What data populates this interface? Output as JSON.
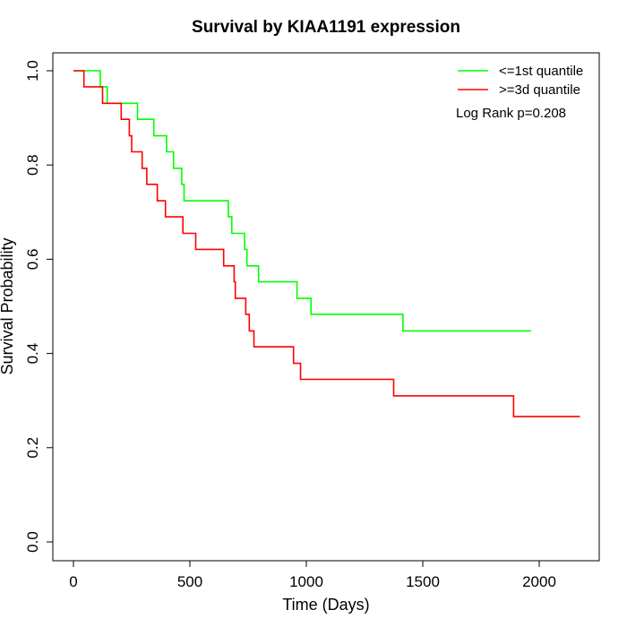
{
  "chart_data": {
    "type": "line",
    "title": "Survival by KIAA1191 expression",
    "xlabel": "Time (Days)",
    "ylabel": "Survival Probability",
    "xlim": [
      0,
      2200
    ],
    "ylim": [
      0,
      1
    ],
    "x_ticks": [
      0,
      500,
      1000,
      1500,
      2000
    ],
    "x_tick_labels": [
      "0",
      "500",
      "1000",
      "1500",
      "2000"
    ],
    "y_ticks": [
      0.0,
      0.2,
      0.4,
      0.6,
      0.8,
      1.0
    ],
    "y_tick_labels": [
      "0.0",
      "0.2",
      "0.4",
      "0.6",
      "0.8",
      "1.0"
    ],
    "legend_position": "top-right",
    "annotation": "Log Rank p=0.208",
    "series": [
      {
        "name": "<=1st quantile",
        "color": "#00ff00",
        "step": true,
        "x": [
          0,
          115,
          145,
          275,
          345,
          400,
          430,
          465,
          475,
          665,
          680,
          735,
          745,
          795,
          960,
          1020,
          1415,
          1965
        ],
        "y": [
          1.0,
          0.966,
          0.931,
          0.897,
          0.862,
          0.828,
          0.793,
          0.759,
          0.724,
          0.69,
          0.655,
          0.621,
          0.586,
          0.552,
          0.517,
          0.483,
          0.448,
          0.448
        ]
      },
      {
        "name": ">=3d quantile",
        "color": "#ff0000",
        "step": true,
        "x": [
          0,
          45,
          125,
          205,
          240,
          250,
          295,
          315,
          360,
          395,
          470,
          525,
          645,
          690,
          695,
          740,
          755,
          775,
          945,
          975,
          1375,
          1890,
          2175
        ],
        "y": [
          1.0,
          0.966,
          0.931,
          0.897,
          0.862,
          0.828,
          0.793,
          0.759,
          0.724,
          0.69,
          0.655,
          0.621,
          0.586,
          0.552,
          0.517,
          0.483,
          0.448,
          0.414,
          0.379,
          0.345,
          0.31,
          0.266,
          0.266
        ]
      }
    ]
  }
}
